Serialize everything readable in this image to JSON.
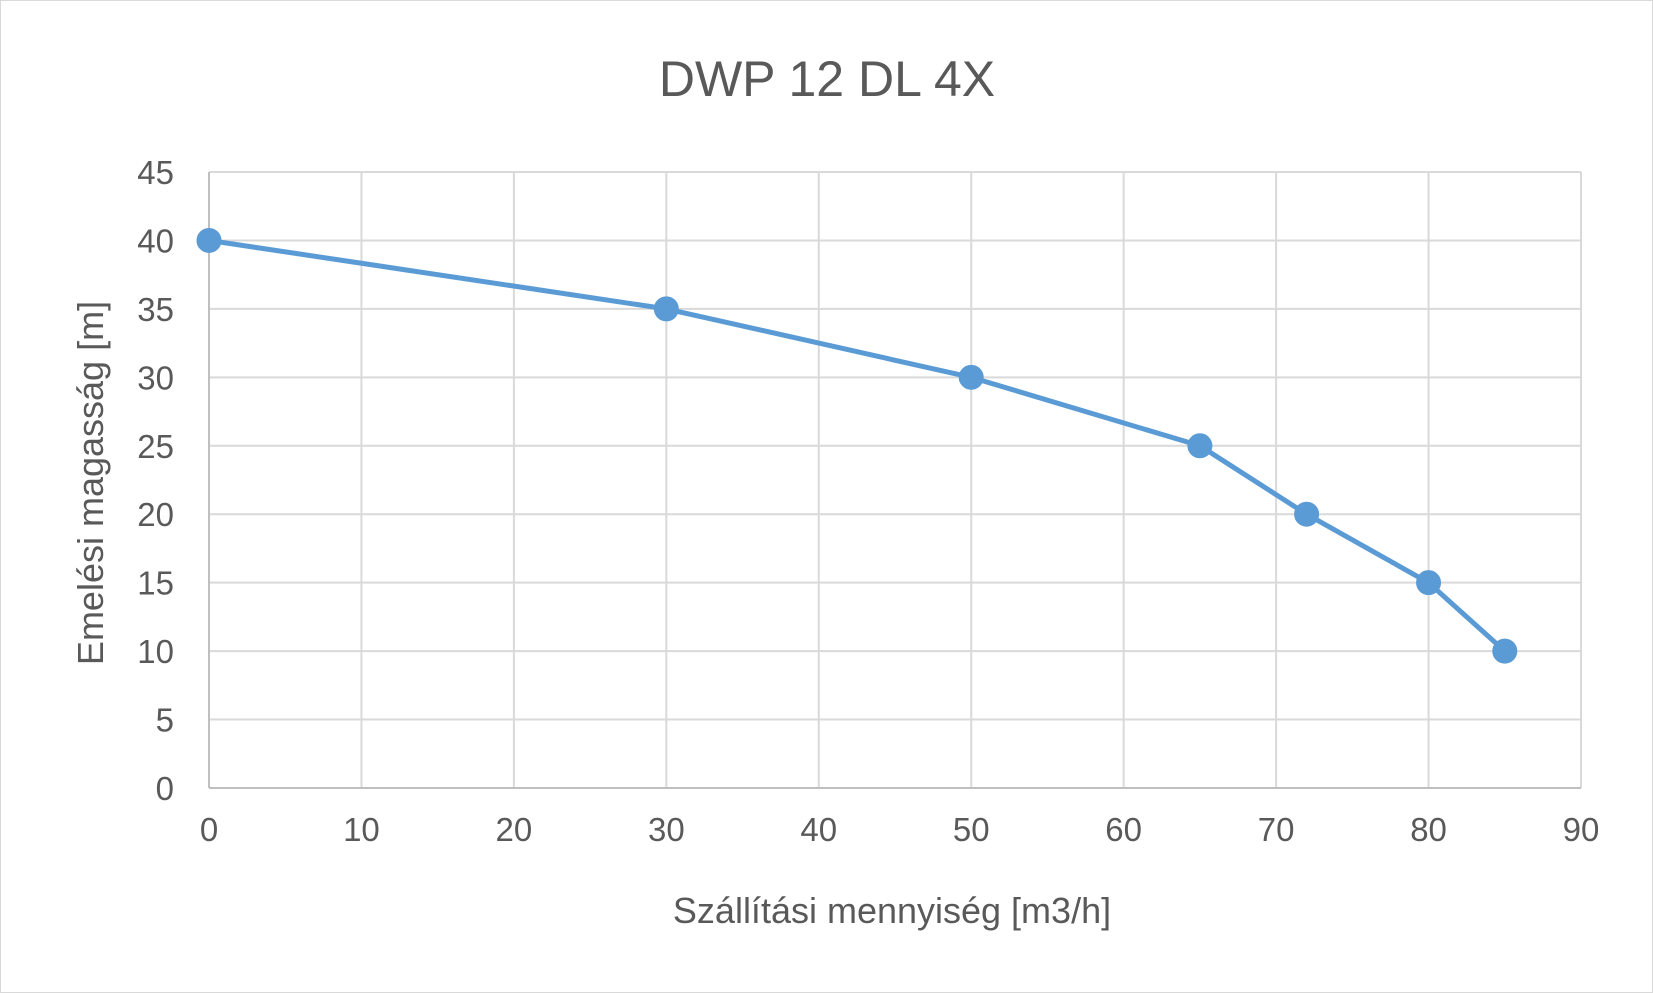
{
  "chart_data": {
    "type": "scatter",
    "title": "DWP 12 DL 4X",
    "xlabel": "Szállítási mennyiség [m3/h]",
    "ylabel": "Emelési magasság [m]",
    "xlim": [
      0,
      90
    ],
    "ylim": [
      0,
      45
    ],
    "x_ticks": [
      0,
      10,
      20,
      30,
      40,
      50,
      60,
      70,
      80,
      90
    ],
    "y_ticks": [
      0,
      5,
      10,
      15,
      20,
      25,
      30,
      35,
      40,
      45
    ],
    "grid": true,
    "legend": "none",
    "series": [
      {
        "x": [
          0,
          30,
          50,
          65,
          72,
          80,
          85
        ],
        "y": [
          40,
          35,
          30,
          25,
          20,
          15,
          10
        ],
        "color": "#5b9bd5",
        "marker": "circle",
        "line": "straight"
      }
    ]
  }
}
